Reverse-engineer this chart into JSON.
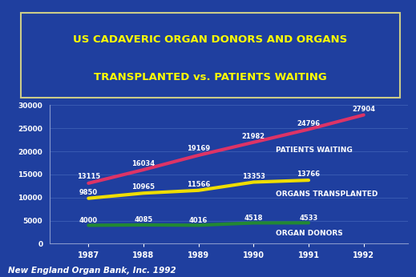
{
  "years": [
    1987,
    1988,
    1989,
    1990,
    1991,
    1992
  ],
  "patients_waiting": [
    13115,
    16034,
    19169,
    21982,
    24796,
    27904
  ],
  "organs_transplanted": [
    9850,
    10965,
    11566,
    13353,
    13766
  ],
  "organ_donors": [
    4000,
    4085,
    4016,
    4518,
    4533
  ],
  "years_short": [
    1987,
    1988,
    1989,
    1990,
    1991
  ],
  "patients_waiting_color": "#dd3366",
  "organs_transplanted_color": "#eedd00",
  "organ_donors_color": "#228833",
  "bg_color": "#1f3f9f",
  "plot_bg_color": "#1f3f9f",
  "title_line1": "US CADAVERIC ORGAN DONORS AND ORGANS",
  "title_line2": "TRANSPLANTED vs. PATIENTS WAITING",
  "title_color": "#ffff00",
  "title_box_edge": "#cccc88",
  "axis_label_color": "#ffffff",
  "data_label_color": "#ffffff",
  "ylabel_ticks": [
    0,
    5000,
    10000,
    15000,
    20000,
    25000,
    30000
  ],
  "ylim": [
    0,
    30000
  ],
  "footnote": "New England Organ Bank, Inc. 1992",
  "footnote_color": "#ffffff",
  "line_label_patients": "PATIENTS WAITING",
  "line_label_transplanted": "ORGANS TRANSPLANTED",
  "line_label_donors": "ORGAN DONORS",
  "line_width": 3.0,
  "grid_color": "#4466bb",
  "pw_label_offsets": [
    700,
    600,
    600,
    500,
    500,
    400
  ],
  "ot_label_offsets": [
    500,
    500,
    500,
    500,
    500
  ],
  "od_label_offsets": [
    300,
    300,
    300,
    300,
    300
  ]
}
